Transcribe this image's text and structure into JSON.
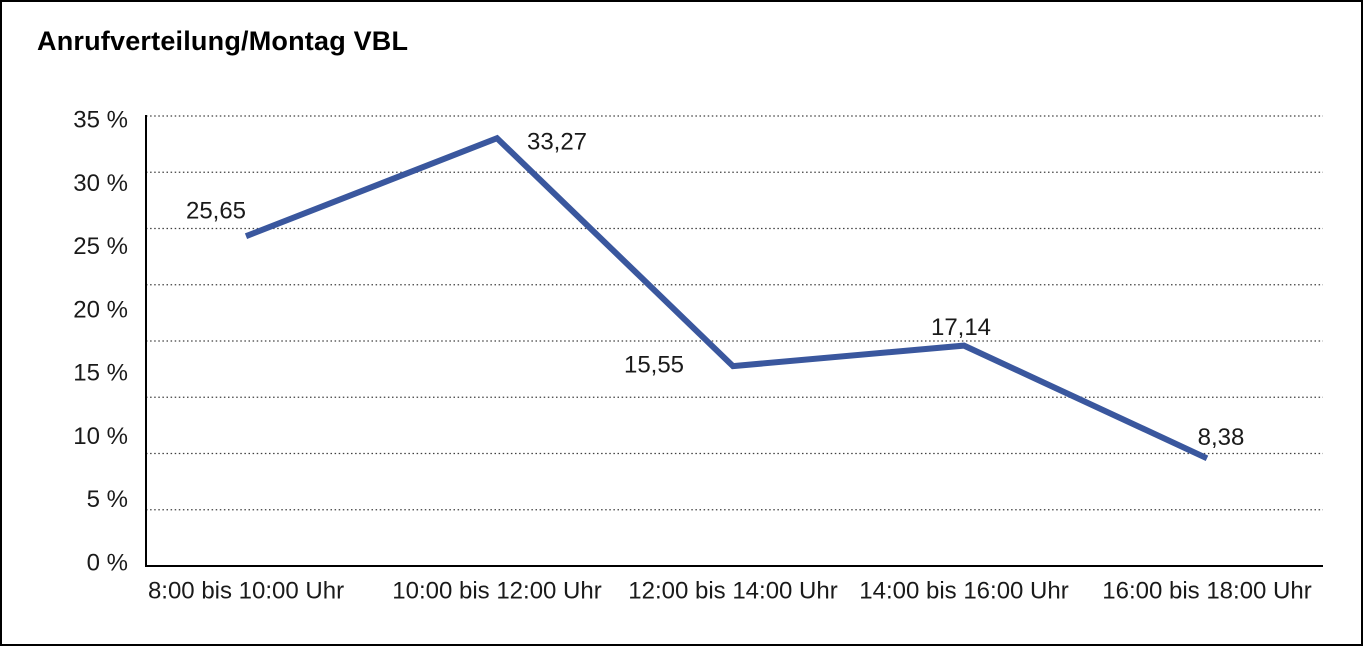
{
  "title": "Anrufverteilung/Montag VBL",
  "chart_data": {
    "type": "line",
    "title": "Anrufverteilung/Montag VBL",
    "categories": [
      "8:00 bis 10:00 Uhr",
      "10:00 bis 12:00 Uhr",
      "12:00 bis 14:00 Uhr",
      "14:00 bis 16:00 Uhr",
      "16:00 bis 18:00 Uhr"
    ],
    "values": [
      25.65,
      33.27,
      15.55,
      17.14,
      8.38
    ],
    "value_labels": [
      "25,65",
      "33,27",
      "15,55",
      "17,14",
      "8,38"
    ],
    "y_ticks": [
      "35 %",
      "30 %",
      "25 %",
      "20 %",
      "15 %",
      "10 %",
      "5 %",
      "0 %"
    ],
    "ylim": [
      0,
      35
    ],
    "unit": "%",
    "grid": "horizontal-dotted",
    "legend": "none",
    "colors": {
      "line": "#3A579E",
      "axis": "#000000",
      "grid_dots": "#3f3f3f",
      "text": "#1a1a1a",
      "background": "#ffffff",
      "border": "#000000"
    }
  }
}
